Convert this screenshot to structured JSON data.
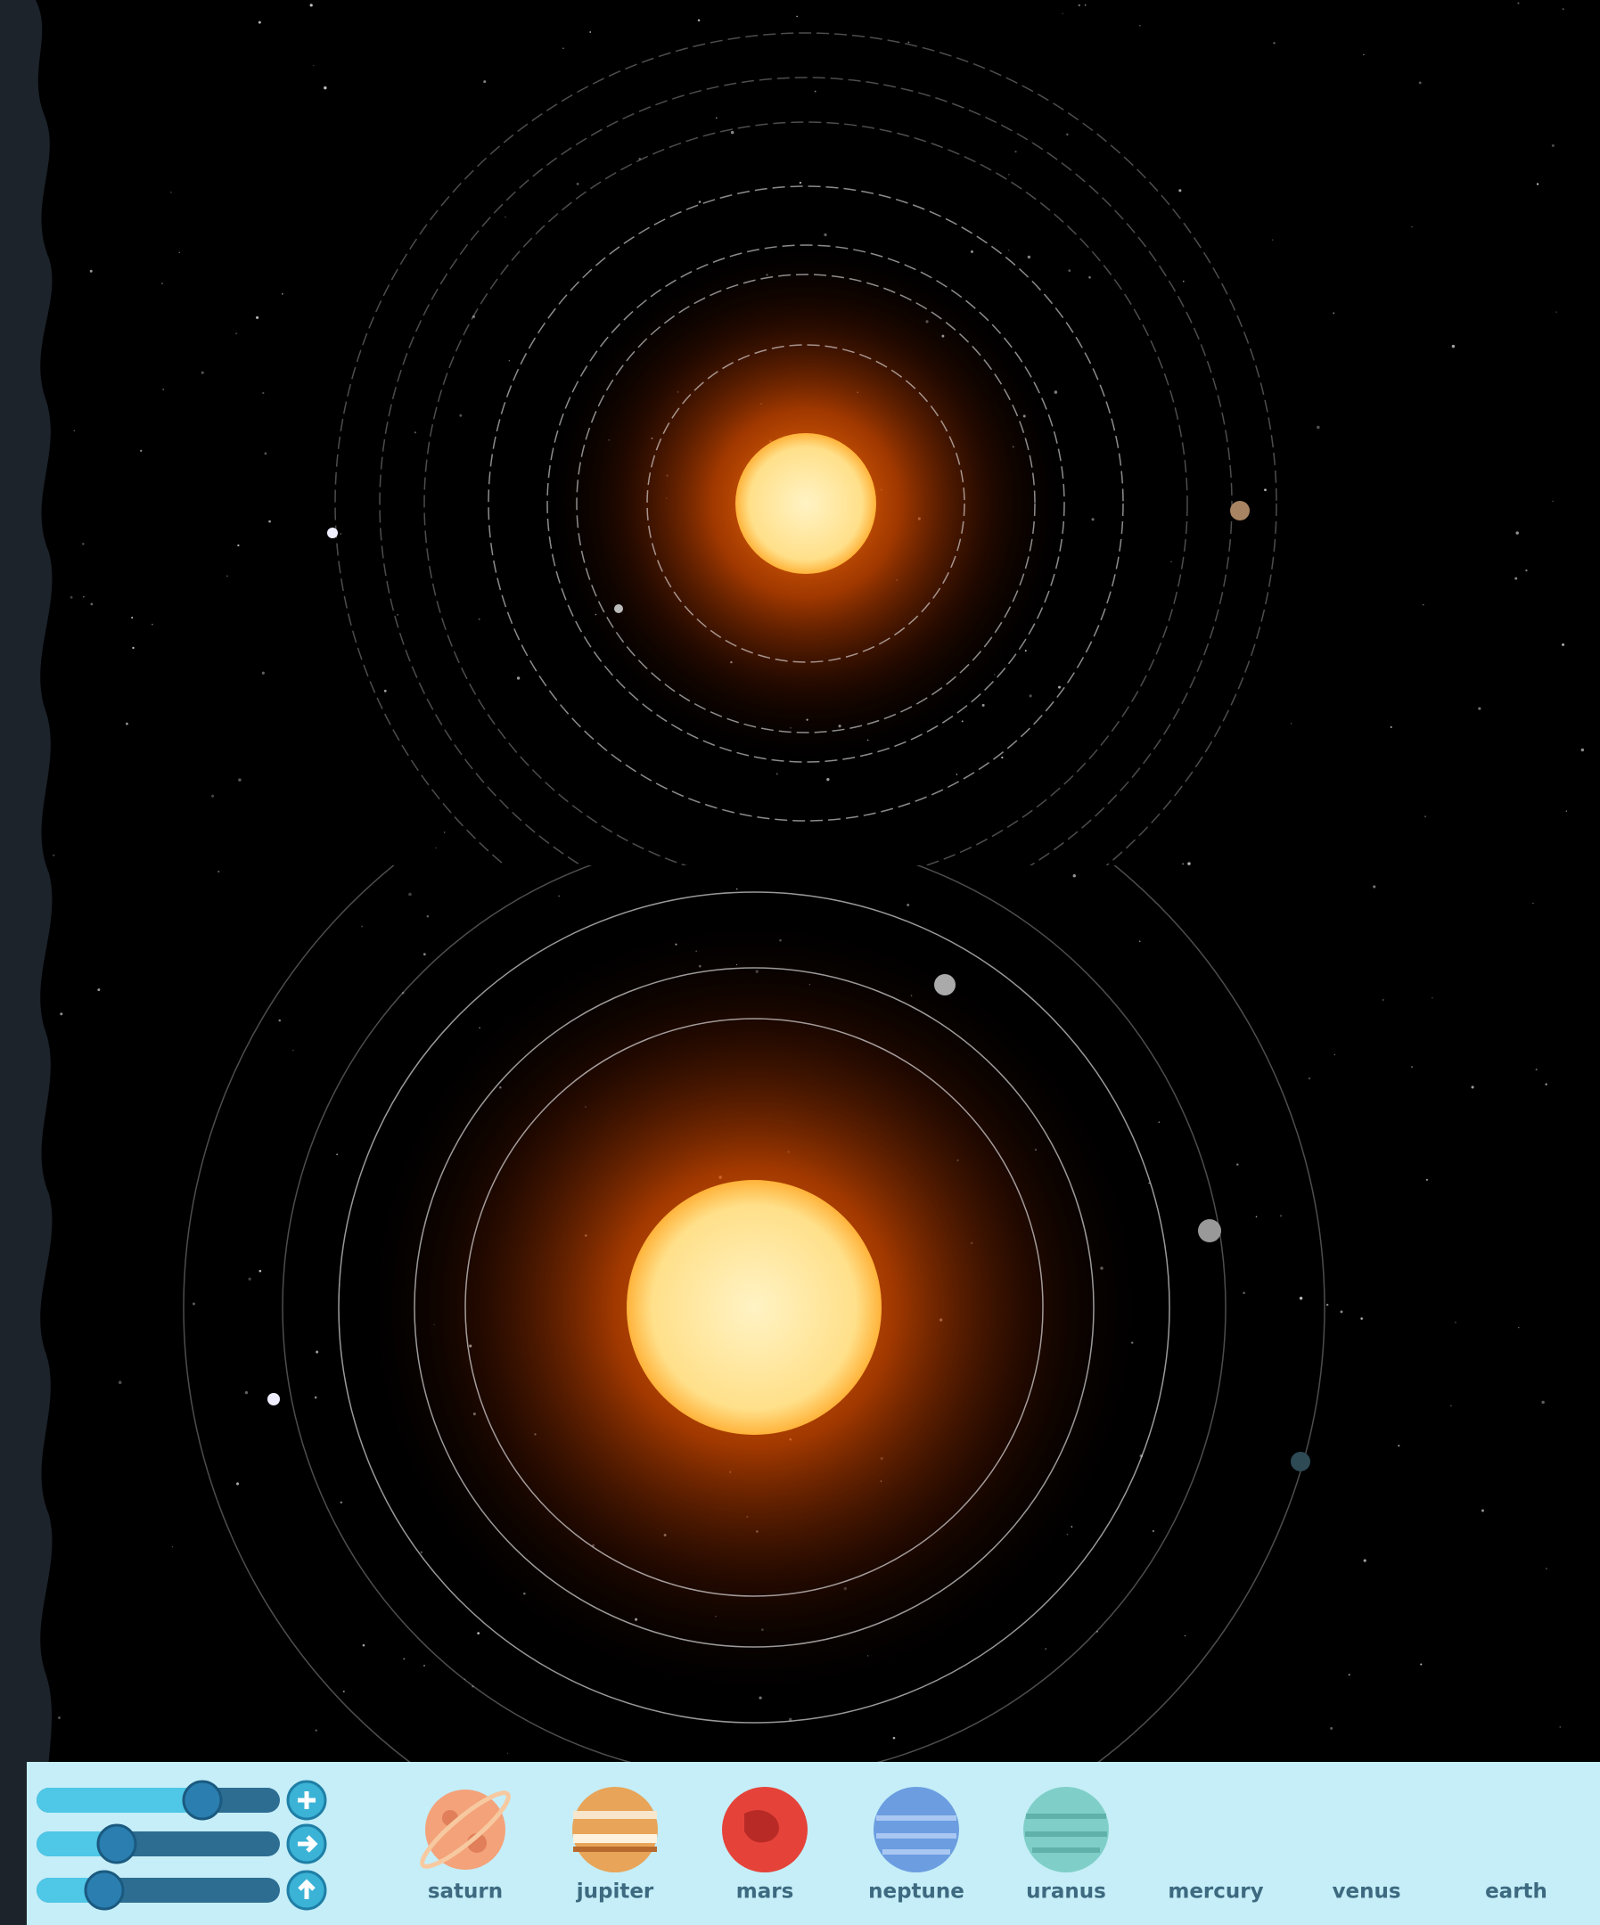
{
  "planets": [
    {
      "label": "saturn"
    },
    {
      "label": "jupiter"
    },
    {
      "label": "mars"
    },
    {
      "label": "neptune"
    },
    {
      "label": "uranus"
    },
    {
      "label": "mercury"
    },
    {
      "label": "venus"
    },
    {
      "label": "earth"
    }
  ]
}
